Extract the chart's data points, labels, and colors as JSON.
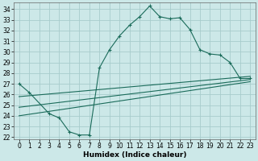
{
  "xlabel": "Humidex (Indice chaleur)",
  "background_color": "#cce8e8",
  "grid_color": "#a8cccc",
  "line_color": "#1a6b5a",
  "xlim": [
    -0.5,
    23.5
  ],
  "ylim": [
    21.8,
    34.6
  ],
  "xticks": [
    0,
    1,
    2,
    3,
    4,
    5,
    6,
    7,
    8,
    9,
    10,
    11,
    12,
    13,
    14,
    15,
    16,
    17,
    18,
    19,
    20,
    21,
    22,
    23
  ],
  "yticks": [
    22,
    23,
    24,
    25,
    26,
    27,
    28,
    29,
    30,
    31,
    32,
    33,
    34
  ],
  "curve1_x": [
    0,
    1,
    3,
    4,
    5,
    6,
    7,
    8,
    9,
    10,
    11,
    12,
    13,
    14,
    15,
    16,
    17,
    18,
    19,
    20,
    21,
    22,
    23
  ],
  "curve1_y": [
    27.0,
    26.2,
    24.2,
    23.8,
    22.5,
    22.2,
    22.2,
    28.5,
    30.2,
    31.5,
    32.5,
    33.3,
    34.3,
    33.3,
    33.1,
    33.2,
    32.1,
    30.2,
    29.8,
    29.7,
    29.0,
    27.5,
    27.5
  ],
  "line1_x": [
    0,
    23
  ],
  "line1_y": [
    25.8,
    27.7
  ],
  "line2_x": [
    0,
    23
  ],
  "line2_y": [
    24.0,
    27.2
  ],
  "line3_x": [
    0,
    23
  ],
  "line3_y": [
    24.8,
    27.4
  ],
  "tick_fontsize": 5.5,
  "xlabel_fontsize": 6.5
}
